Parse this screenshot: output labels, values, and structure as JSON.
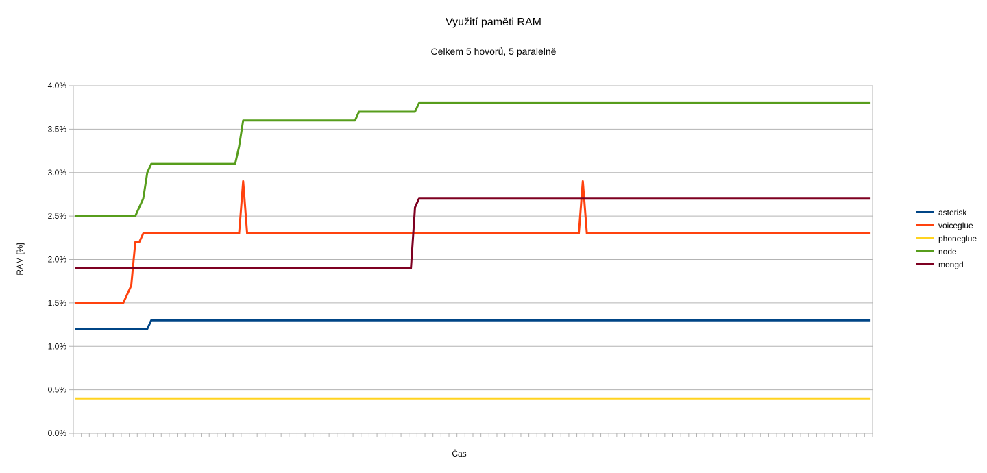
{
  "chart_data": {
    "type": "line",
    "title": "Využití paměti RAM",
    "subtitle": "Celkem 5 hovorů, 5 paralelně",
    "xlabel": "Čas",
    "ylabel": "RAM [%]",
    "ylim": [
      0,
      0.04
    ],
    "yticks": [
      "0.0%",
      "0.5%",
      "1.0%",
      "1.5%",
      "2.0%",
      "2.5%",
      "3.0%",
      "3.5%",
      "4.0%"
    ],
    "grid": true,
    "legend_position": "right",
    "x_count": 200,
    "series": [
      {
        "name": "asterisk",
        "color": "#004586",
        "segments": [
          [
            0,
            0.012
          ],
          [
            18,
            0.012
          ],
          [
            19,
            0.013
          ],
          [
            199,
            0.013
          ]
        ]
      },
      {
        "name": "voiceglue",
        "color": "#ff420e",
        "segments": [
          [
            0,
            0.015
          ],
          [
            12,
            0.015
          ],
          [
            14,
            0.017
          ],
          [
            15,
            0.022
          ],
          [
            16,
            0.022
          ],
          [
            17,
            0.023
          ],
          [
            41,
            0.023
          ],
          [
            42,
            0.029
          ],
          [
            43,
            0.023
          ],
          [
            126,
            0.023
          ],
          [
            127,
            0.029
          ],
          [
            128,
            0.023
          ],
          [
            199,
            0.023
          ]
        ]
      },
      {
        "name": "phoneglue",
        "color": "#ffd320",
        "segments": [
          [
            0,
            0.004
          ],
          [
            199,
            0.004
          ]
        ]
      },
      {
        "name": "node",
        "color": "#579d1c",
        "segments": [
          [
            0,
            0.025
          ],
          [
            15,
            0.025
          ],
          [
            17,
            0.027
          ],
          [
            18,
            0.03
          ],
          [
            19,
            0.031
          ],
          [
            40,
            0.031
          ],
          [
            41,
            0.033
          ],
          [
            42,
            0.036
          ],
          [
            70,
            0.036
          ],
          [
            71,
            0.037
          ],
          [
            85,
            0.037
          ],
          [
            86,
            0.038
          ],
          [
            199,
            0.038
          ]
        ]
      },
      {
        "name": "mongd",
        "color": "#7e0021",
        "segments": [
          [
            0,
            0.019
          ],
          [
            84,
            0.019
          ],
          [
            85,
            0.026
          ],
          [
            86,
            0.027
          ],
          [
            199,
            0.027
          ]
        ]
      }
    ]
  }
}
